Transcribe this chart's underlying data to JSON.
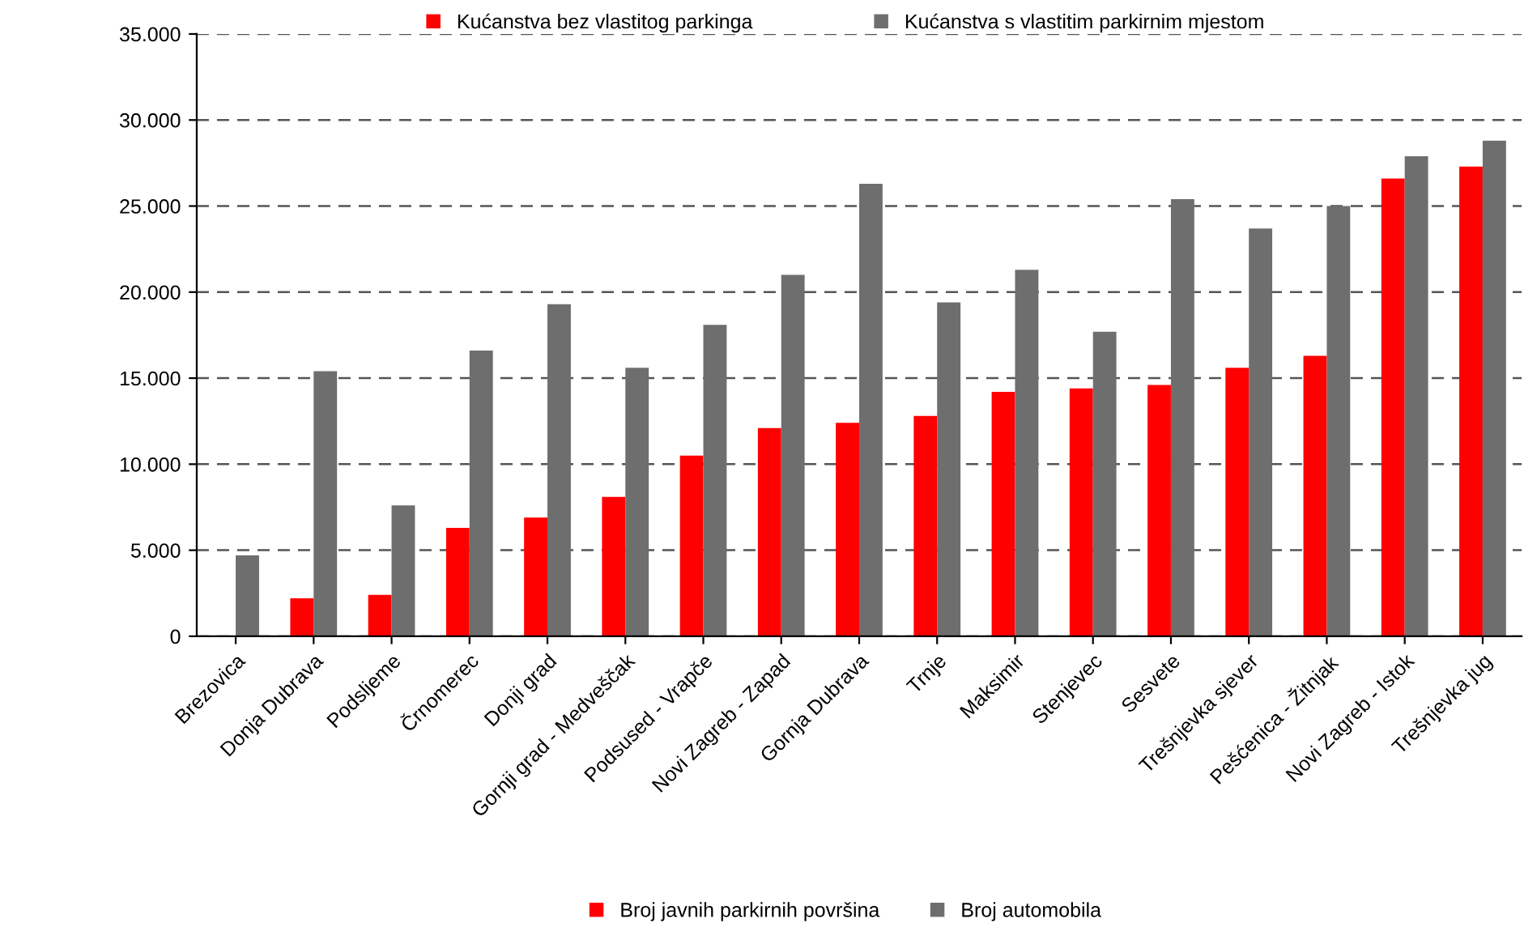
{
  "chart_data": {
    "type": "bar",
    "categories": [
      "Brezovica",
      "Donja Dubrava",
      "Podsljeme",
      "Črnomerec",
      "Donji grad",
      "Gornji grad - Medveščak",
      "Podsused - Vrapče",
      "Novi Zagreb - Zapad",
      "Gornja Dubrava",
      "Trnje",
      "Maksimir",
      "Stenjevec",
      "Sesvete",
      "Trešnjevka sjever",
      "Pešćenica - Žitnjak",
      "Novi Zagreb - Istok",
      "Trešnjevka jug"
    ],
    "series": [
      {
        "name": "Broj javnih parkirnih površina",
        "color": "#ff0000",
        "values": [
          null,
          2200,
          2400,
          6300,
          6900,
          8100,
          10500,
          12100,
          12400,
          12800,
          14200,
          14400,
          14600,
          15600,
          16300,
          26600,
          27300
        ]
      },
      {
        "name": "Broj automobila",
        "color": "#6e6e6e",
        "values": [
          4700,
          15400,
          7600,
          16600,
          19300,
          15600,
          18100,
          21000,
          26300,
          19400,
          21300,
          17700,
          25400,
          23700,
          25000,
          27900,
          28800
        ]
      }
    ],
    "annotations": [
      "Kućanstva bez vlastitog parkinga",
      "Kućanstva s vlastitim parkirnim mjestom"
    ],
    "ylim": [
      0,
      35000
    ],
    "yticks": [
      0,
      {
        "value": 5000,
        "label": "5.000"
      },
      {
        "value": 10000,
        "label": "10.000"
      },
      {
        "value": 15000,
        "label": "15.000"
      },
      {
        "value": 20000,
        "label": "20.000"
      },
      {
        "value": 25000,
        "label": "25.000"
      },
      {
        "value": 30000,
        "label": "30.000"
      },
      {
        "value": 35000,
        "label": "35.000"
      }
    ],
    "grid": "y",
    "legend": "bottom"
  }
}
